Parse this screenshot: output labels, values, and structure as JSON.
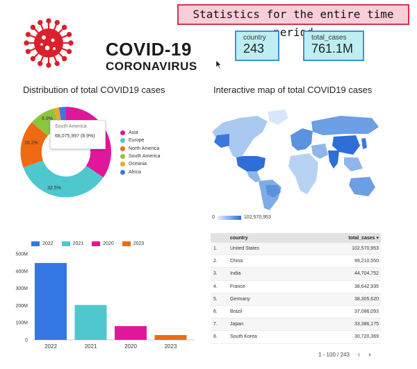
{
  "header": {
    "logo_title": "COVID-19",
    "logo_subtitle": "CORONAVIRUS",
    "period_label": "Statistics for the entire time period"
  },
  "scorecards": [
    {
      "label": "country",
      "value": "243"
    },
    {
      "label": "total_cases",
      "value": "761.1M"
    }
  ],
  "donut": {
    "title": "Distribution of total COVID19 cases",
    "tooltip": {
      "name": "South America",
      "value": "68,075,997 (8.9%)"
    },
    "labels": [
      "8.9%",
      "16.2%",
      "32.5%"
    ],
    "legend": [
      {
        "name": "Asia",
        "color": "#e0179b"
      },
      {
        "name": "Europe",
        "color": "#4fc7cf"
      },
      {
        "name": "North America",
        "color": "#ef6a12"
      },
      {
        "name": "South America",
        "color": "#8cc63f"
      },
      {
        "name": "Oceania",
        "color": "#f5a623"
      },
      {
        "name": "Africa",
        "color": "#3c78d8"
      }
    ]
  },
  "map": {
    "title": "Interactive map of total COVID19 cases",
    "scale_min": "0",
    "scale_max": "102,570,953"
  },
  "chart_data": {
    "type": "bar",
    "categories": [
      "2022",
      "2021",
      "2020",
      "2023"
    ],
    "values": [
      447,
      203,
      80,
      28
    ],
    "colors": [
      "#3476e3",
      "#4fc7cf",
      "#e0179b",
      "#ef6a12"
    ],
    "yticks": [
      "0",
      "100M",
      "200M",
      "300M",
      "400M",
      "500M"
    ],
    "ylim": [
      0,
      500
    ],
    "legend_placement": "top-left",
    "grid": false
  },
  "table": {
    "columns": {
      "country": "country",
      "cases": "total_cases ▾"
    },
    "rows": [
      {
        "idx": "1.",
        "country": "United States",
        "cases": "102,570,953"
      },
      {
        "idx": "2.",
        "country": "China",
        "cases": "99,210,550"
      },
      {
        "idx": "3.",
        "country": "India",
        "cases": "44,704,752"
      },
      {
        "idx": "4.",
        "country": "France",
        "cases": "38,642,935"
      },
      {
        "idx": "5.",
        "country": "Germany",
        "cases": "38,305,620"
      },
      {
        "idx": "6.",
        "country": "Brazil",
        "cases": "37,086,093"
      },
      {
        "idx": "7.",
        "country": "Japan",
        "cases": "33,386,175"
      },
      {
        "idx": "8.",
        "country": "South Korea",
        "cases": "30,720,369"
      }
    ],
    "pager": "1 - 100 / 243",
    "prev_icon": "chevron-left-icon",
    "next_icon": "chevron-right-icon"
  }
}
